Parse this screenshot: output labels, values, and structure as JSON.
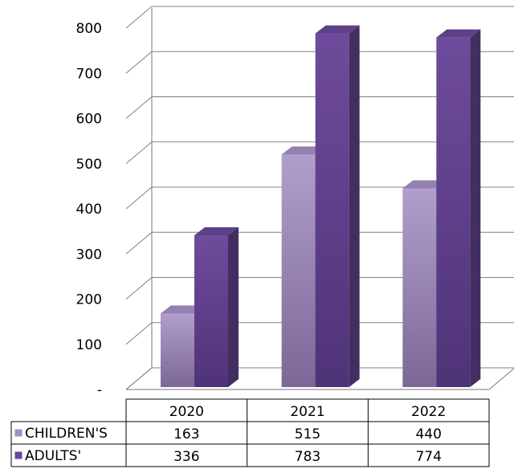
{
  "chart_data": {
    "type": "bar",
    "style": "3d-column",
    "categories": [
      "2020",
      "2021",
      "2022"
    ],
    "series": [
      {
        "name": "CHILDREN'S",
        "values": [
          163,
          515,
          440
        ],
        "color": "#a38fc3"
      },
      {
        "name": "ADULTS'",
        "values": [
          336,
          783,
          774
        ],
        "color": "#674796"
      }
    ],
    "ylim": [
      0,
      800
    ],
    "yticks": [
      0,
      100,
      200,
      300,
      400,
      500,
      600,
      700,
      800
    ],
    "ytick_labels": [
      "-",
      "100",
      "200",
      "300",
      "400",
      "500",
      "600",
      "700",
      "800"
    ],
    "grid": true,
    "legend": "data-table-below"
  }
}
